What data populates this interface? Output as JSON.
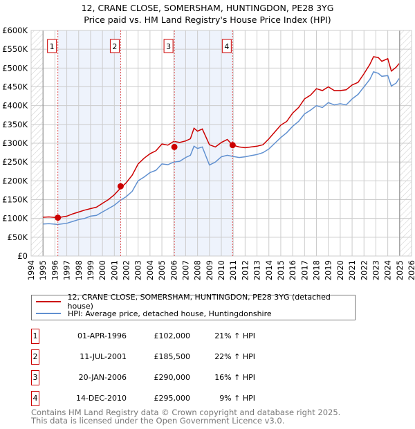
{
  "title_line1": "12, CRANE CLOSE, SOMERSHAM, HUNTINGDON, PE28 3YG",
  "title_line2": "Price paid vs. HM Land Registry's House Price Index (HPI)",
  "colors": {
    "property": "#cc0000",
    "hpi": "#6090d0",
    "shade": "#eef3fc",
    "grid": "#cccccc"
  },
  "chart_data": {
    "type": "line",
    "xlim": [
      1994,
      2026
    ],
    "ylim": [
      0,
      600000
    ],
    "x_ticks": [
      1994,
      1995,
      1996,
      1997,
      1998,
      1999,
      2000,
      2001,
      2002,
      2003,
      2004,
      2005,
      2006,
      2007,
      2008,
      2009,
      2010,
      2011,
      2012,
      2013,
      2014,
      2015,
      2016,
      2017,
      2018,
      2019,
      2020,
      2021,
      2022,
      2023,
      2024,
      2025,
      2026
    ],
    "y_ticks": [
      0,
      50000,
      100000,
      150000,
      200000,
      250000,
      300000,
      350000,
      400000,
      450000,
      500000,
      550000,
      600000
    ],
    "y_tick_labels": [
      "£0",
      "£50K",
      "£100K",
      "£150K",
      "£200K",
      "£250K",
      "£300K",
      "£350K",
      "£400K",
      "£450K",
      "£500K",
      "£550K",
      "£600K"
    ],
    "data_range": [
      1995,
      2025
    ],
    "series": [
      {
        "name": "12, CRANE CLOSE, SOMERSHAM, HUNTINGDON, PE28 3YG (detached house)",
        "x": [
          1995,
          1995.5,
          1996.25,
          1997,
          1997.5,
          1998,
          1998.5,
          1999,
          1999.5,
          2000,
          2000.5,
          2001,
          2001.5,
          2002,
          2002.5,
          2003,
          2003.5,
          2004,
          2004.5,
          2005,
          2005.5,
          2006,
          2006.5,
          2007,
          2007.4,
          2007.7,
          2008,
          2008.4,
          2009,
          2009.5,
          2010,
          2010.5,
          2010.95,
          2011.5,
          2012,
          2012.5,
          2013,
          2013.5,
          2014,
          2014.5,
          2015,
          2015.5,
          2016,
          2016.5,
          2017,
          2017.5,
          2018,
          2018.5,
          2019,
          2019.5,
          2020,
          2020.5,
          2021,
          2021.5,
          2022,
          2022.5,
          2022.8,
          2023.2,
          2023.5,
          2024,
          2024.3,
          2024.7,
          2024.95
        ],
        "values": [
          103000,
          104000,
          102000,
          106000,
          112000,
          117000,
          122000,
          126000,
          130000,
          140000,
          150000,
          163000,
          180000,
          195000,
          215000,
          245000,
          260000,
          272000,
          280000,
          298000,
          295000,
          305000,
          302000,
          306000,
          312000,
          340000,
          332000,
          338000,
          296000,
          290000,
          302000,
          310000,
          295000,
          290000,
          288000,
          290000,
          292000,
          296000,
          312000,
          330000,
          348000,
          358000,
          380000,
          395000,
          418000,
          428000,
          445000,
          440000,
          450000,
          440000,
          440000,
          442000,
          455000,
          462000,
          485000,
          510000,
          530000,
          528000,
          518000,
          525000,
          492000,
          502000,
          512000
        ]
      },
      {
        "name": "HPI: Average price, detached house, Huntingdonshire",
        "x": [
          1995,
          1995.5,
          1996.25,
          1997,
          1997.5,
          1998,
          1998.5,
          1999,
          1999.5,
          2000,
          2000.5,
          2001,
          2001.5,
          2002,
          2002.5,
          2003,
          2003.5,
          2004,
          2004.5,
          2005,
          2005.5,
          2006,
          2006.5,
          2007,
          2007.4,
          2007.7,
          2008,
          2008.4,
          2009,
          2009.5,
          2010,
          2010.5,
          2010.95,
          2011.5,
          2012,
          2012.5,
          2013,
          2013.5,
          2014,
          2014.5,
          2015,
          2015.5,
          2016,
          2016.5,
          2017,
          2017.5,
          2018,
          2018.5,
          2019,
          2019.5,
          2020,
          2020.5,
          2021,
          2021.5,
          2022,
          2022.5,
          2022.8,
          2023.2,
          2023.5,
          2024,
          2024.3,
          2024.7,
          2024.95
        ],
        "values": [
          85000,
          86000,
          84000,
          87000,
          92000,
          97000,
          100000,
          106000,
          108000,
          117000,
          126000,
          135000,
          148000,
          158000,
          172000,
          200000,
          210000,
          222000,
          228000,
          245000,
          243000,
          250000,
          252000,
          262000,
          268000,
          292000,
          286000,
          290000,
          242000,
          250000,
          264000,
          268000,
          265000,
          262000,
          264000,
          267000,
          270000,
          275000,
          285000,
          300000,
          315000,
          328000,
          345000,
          358000,
          378000,
          388000,
          400000,
          395000,
          408000,
          402000,
          405000,
          402000,
          418000,
          430000,
          450000,
          470000,
          490000,
          486000,
          478000,
          480000,
          452000,
          460000,
          472000
        ]
      }
    ],
    "sales": [
      {
        "label": "1",
        "x": 1996.25,
        "price": 102000
      },
      {
        "label": "2",
        "x": 2001.53,
        "price": 185500
      },
      {
        "label": "3",
        "x": 2006.05,
        "price": 290000
      },
      {
        "label": "4",
        "x": 2010.95,
        "price": 295000
      }
    ]
  },
  "legend": {
    "property": "12, CRANE CLOSE, SOMERSHAM, HUNTINGDON, PE28 3YG (detached house)",
    "hpi": "HPI: Average price, detached house, Huntingdonshire"
  },
  "transactions": [
    {
      "num": "1",
      "date": "01-APR-1996",
      "price": "£102,000",
      "hpi": "21% ↑ HPI"
    },
    {
      "num": "2",
      "date": "11-JUL-2001",
      "price": "£185,500",
      "hpi": "22% ↑ HPI"
    },
    {
      "num": "3",
      "date": "20-JAN-2006",
      "price": "£290,000",
      "hpi": "16% ↑ HPI"
    },
    {
      "num": "4",
      "date": "14-DEC-2010",
      "price": "£295,000",
      "hpi": "9% ↑ HPI"
    }
  ],
  "footer": {
    "line1": "Contains HM Land Registry data © Crown copyright and database right 2025.",
    "line2": "This data is licensed under the Open Government Licence v3.0."
  }
}
